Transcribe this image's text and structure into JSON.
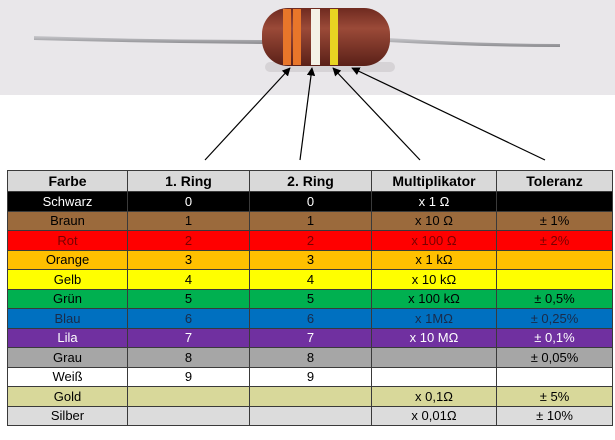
{
  "photo": {
    "background": "#e9e7ea",
    "body_color": "#8a3a2c",
    "wire_color": "#a9a9ad"
  },
  "photo_bands": [
    {
      "name": "orange",
      "color": "#e8762a"
    },
    {
      "name": "orange",
      "color": "#e8762a"
    },
    {
      "name": "white",
      "color": "#f4f1e6"
    },
    {
      "name": "yellow",
      "color": "#e8d422"
    }
  ],
  "table": {
    "headers": [
      "Farbe",
      "1.  Ring",
      "2.  Ring",
      "Multiplikator",
      "Toleranz"
    ],
    "rows": [
      {
        "cells": [
          "Schwarz",
          "0",
          "0",
          "x 1 Ω",
          ""
        ],
        "bg": "#000000",
        "fg": "#ffffff"
      },
      {
        "cells": [
          "Braun",
          "1",
          "1",
          "x 10 Ω",
          "± 1%"
        ],
        "bg": "#9b6a3c",
        "fg": "#000000"
      },
      {
        "cells": [
          "Rot",
          "2",
          "2",
          "x 100 Ω",
          "± 2%"
        ],
        "bg": "#ff0000",
        "fg": "#7a0000"
      },
      {
        "cells": [
          "Orange",
          "3",
          "3",
          "x 1 kΩ",
          ""
        ],
        "bg": "#ffc000",
        "fg": "#000000"
      },
      {
        "cells": [
          "Gelb",
          "4",
          "4",
          "x 10 kΩ",
          ""
        ],
        "bg": "#ffff00",
        "fg": "#000000"
      },
      {
        "cells": [
          "Grün",
          "5",
          "5",
          "x 100 kΩ",
          "± 0,5%"
        ],
        "bg": "#00b050",
        "fg": "#000000"
      },
      {
        "cells": [
          "Blau",
          "6",
          "6",
          "x 1MΩ",
          "± 0,25%"
        ],
        "bg": "#0070c0",
        "fg": "#1a2b4a"
      },
      {
        "cells": [
          "Lila",
          "7",
          "7",
          "x 10 MΩ",
          "± 0,1%"
        ],
        "bg": "#7030a0",
        "fg": "#ffffff"
      },
      {
        "cells": [
          "Grau",
          "8",
          "8",
          "",
          "± 0,05%"
        ],
        "bg": "#a6a6a6",
        "fg": "#000000"
      },
      {
        "cells": [
          "Weiß",
          "9",
          "9",
          "",
          ""
        ],
        "bg": "#ffffff",
        "fg": "#000000"
      },
      {
        "cells": [
          "Gold",
          "",
          "",
          "x 0,1Ω",
          "± 5%"
        ],
        "bg": "#d8d89a",
        "fg": "#000000"
      },
      {
        "cells": [
          "Silber",
          "",
          "",
          "x 0,01Ω",
          "± 10%"
        ],
        "bg": "#dcdcdc",
        "fg": "#000000"
      }
    ]
  }
}
